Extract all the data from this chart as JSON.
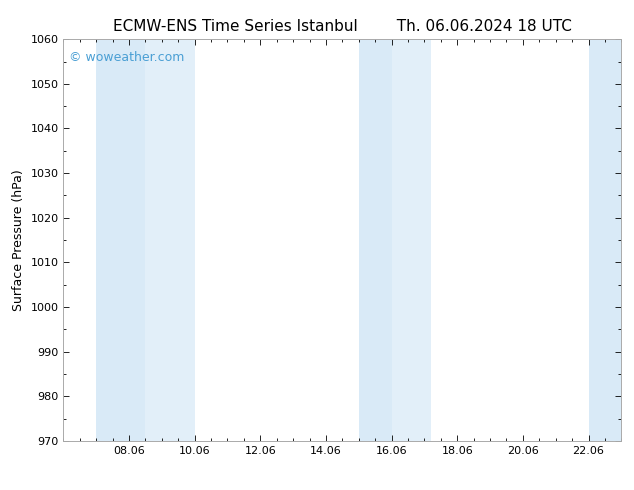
{
  "title_left": "ECMW-ENS Time Series Istanbul",
  "title_right": "Th. 06.06.2024 18 UTC",
  "ylabel": "Surface Pressure (hPa)",
  "ylim": [
    970,
    1060
  ],
  "yticks": [
    970,
    980,
    990,
    1000,
    1010,
    1020,
    1030,
    1040,
    1050,
    1060
  ],
  "xtick_labels": [
    "08.06",
    "10.06",
    "12.06",
    "14.06",
    "16.06",
    "18.06",
    "20.06",
    "22.06"
  ],
  "xlim": [
    6.0,
    23.0
  ],
  "xtick_positions": [
    8.0,
    10.0,
    12.0,
    14.0,
    16.0,
    18.0,
    20.0,
    22.0
  ],
  "background_color": "#ffffff",
  "plot_bg_color": "#ffffff",
  "shaded_bands": [
    {
      "xmin": 7.0,
      "xmax": 8.5,
      "color": "#d9eaf7"
    },
    {
      "xmin": 8.5,
      "xmax": 10.0,
      "color": "#e2eff9"
    },
    {
      "xmin": 15.0,
      "xmax": 16.0,
      "color": "#d9eaf7"
    },
    {
      "xmin": 16.0,
      "xmax": 17.2,
      "color": "#e2eff9"
    },
    {
      "xmin": 22.0,
      "xmax": 23.0,
      "color": "#d9eaf7"
    }
  ],
  "watermark_text": "© woweather.com",
  "watermark_color": "#4a9fd4",
  "watermark_fontsize": 9,
  "title_fontsize": 11,
  "tick_fontsize": 8,
  "ylabel_fontsize": 9
}
